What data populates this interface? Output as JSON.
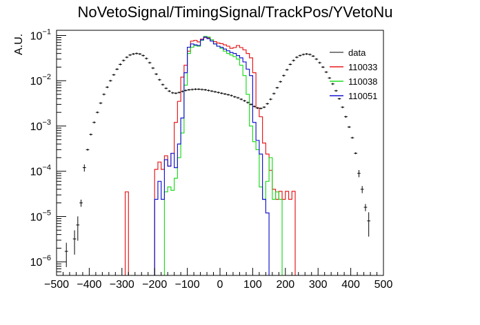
{
  "chart_data": {
    "type": "line",
    "title": "NoVetoSignal/TimingSignal/TrackPos/YVetoNu",
    "xlabel": "",
    "ylabel": "A.U.",
    "xlim": [
      -500,
      500
    ],
    "ylim": [
      5e-07,
      0.13
    ],
    "yscale": "log",
    "grid": false,
    "legend_position": "top-right",
    "x_ticks": [
      -500,
      -400,
      -300,
      -200,
      -100,
      0,
      100,
      200,
      300,
      400,
      500
    ],
    "x_tick_labels": [
      "−500",
      "−400",
      "−300",
      "−200",
      "−100",
      "0",
      "100",
      "200",
      "300",
      "400",
      "500"
    ],
    "y_ticks": [
      1e-06,
      1e-05,
      0.0001,
      0.001,
      0.01,
      0.1
    ],
    "y_tick_labels": [
      {
        "base": "10",
        "exp": "−6"
      },
      {
        "base": "10",
        "exp": "−5"
      },
      {
        "base": "10",
        "exp": "−4"
      },
      {
        "base": "10",
        "exp": "−3"
      },
      {
        "base": "10",
        "exp": "−2"
      },
      {
        "base": "10",
        "exp": "−1"
      }
    ],
    "data_series": {
      "name": "data",
      "color": "#000000",
      "style": "points-with-errors",
      "points": [
        [
          -470,
          1.7e-06
        ],
        [
          -445,
          3.2e-06
        ],
        [
          -435,
          6.5e-06
        ],
        [
          -425,
          2e-05
        ],
        [
          -415,
          0.00012
        ],
        [
          -405,
          0.0003
        ],
        [
          -395,
          0.00065
        ],
        [
          -385,
          0.0012
        ],
        [
          -375,
          0.002
        ],
        [
          -365,
          0.0032
        ],
        [
          -355,
          0.005
        ],
        [
          -345,
          0.0072
        ],
        [
          -335,
          0.01
        ],
        [
          -325,
          0.0135
        ],
        [
          -315,
          0.018
        ],
        [
          -305,
          0.023
        ],
        [
          -295,
          0.028
        ],
        [
          -285,
          0.033
        ],
        [
          -275,
          0.037
        ],
        [
          -265,
          0.039
        ],
        [
          -255,
          0.04
        ],
        [
          -245,
          0.039
        ],
        [
          -235,
          0.036
        ],
        [
          -225,
          0.031
        ],
        [
          -215,
          0.025
        ],
        [
          -205,
          0.019
        ],
        [
          -195,
          0.014
        ],
        [
          -185,
          0.0105
        ],
        [
          -175,
          0.0082
        ],
        [
          -165,
          0.0068
        ],
        [
          -155,
          0.0059
        ],
        [
          -145,
          0.0054
        ],
        [
          -135,
          0.0053
        ],
        [
          -125,
          0.0055
        ],
        [
          -115,
          0.0058
        ],
        [
          -105,
          0.0061
        ],
        [
          -95,
          0.0063
        ],
        [
          -85,
          0.0064
        ],
        [
          -75,
          0.0065
        ],
        [
          -65,
          0.0065
        ],
        [
          -55,
          0.0064
        ],
        [
          -45,
          0.0063
        ],
        [
          -35,
          0.0061
        ],
        [
          -25,
          0.0059
        ],
        [
          -15,
          0.0057
        ],
        [
          -5,
          0.0055
        ],
        [
          5,
          0.0053
        ],
        [
          15,
          0.0051
        ],
        [
          25,
          0.0049
        ],
        [
          35,
          0.0047
        ],
        [
          45,
          0.0044
        ],
        [
          55,
          0.0042
        ],
        [
          65,
          0.0039
        ],
        [
          75,
          0.0036
        ],
        [
          85,
          0.0033
        ],
        [
          95,
          0.003
        ],
        [
          105,
          0.0027
        ],
        [
          115,
          0.0025
        ],
        [
          125,
          0.00245
        ],
        [
          135,
          0.0026
        ],
        [
          145,
          0.0031
        ],
        [
          155,
          0.0039
        ],
        [
          165,
          0.0052
        ],
        [
          175,
          0.007
        ],
        [
          185,
          0.0095
        ],
        [
          195,
          0.013
        ],
        [
          205,
          0.0175
        ],
        [
          215,
          0.023
        ],
        [
          225,
          0.028
        ],
        [
          235,
          0.033
        ],
        [
          245,
          0.036
        ],
        [
          255,
          0.038
        ],
        [
          265,
          0.039
        ],
        [
          275,
          0.038
        ],
        [
          285,
          0.035
        ],
        [
          295,
          0.03
        ],
        [
          305,
          0.025
        ],
        [
          315,
          0.02
        ],
        [
          325,
          0.0155
        ],
        [
          335,
          0.0115
        ],
        [
          345,
          0.0085
        ],
        [
          355,
          0.006
        ],
        [
          365,
          0.004
        ],
        [
          375,
          0.0026
        ],
        [
          385,
          0.0016
        ],
        [
          395,
          0.00095
        ],
        [
          405,
          0.00055
        ],
        [
          415,
          0.00025
        ],
        [
          425,
          9e-05
        ],
        [
          435,
          4e-05
        ],
        [
          445,
          1.6e-05
        ],
        [
          455,
          8e-06
        ]
      ]
    },
    "series": [
      {
        "name": "110033",
        "color": "#e8191b",
        "style": "step",
        "bin_width": 10,
        "bins": [
          [
            -290,
            3.5e-05
          ],
          [
            -200,
            0.00011
          ],
          [
            -190,
            0.00016
          ],
          [
            -180,
            0.00011
          ],
          [
            -170,
            0.00022
          ],
          [
            -160,
            0.00013
          ],
          [
            -150,
            0.00025
          ],
          [
            -140,
            0.0012
          ],
          [
            -130,
            0.0035
          ],
          [
            -120,
            0.012
          ],
          [
            -110,
            0.022
          ],
          [
            -100,
            0.045
          ],
          [
            -90,
            0.075
          ],
          [
            -80,
            0.078
          ],
          [
            -70,
            0.072
          ],
          [
            -60,
            0.083
          ],
          [
            -50,
            0.09
          ],
          [
            -40,
            0.088
          ],
          [
            -30,
            0.08
          ],
          [
            -20,
            0.073
          ],
          [
            -10,
            0.068
          ],
          [
            0,
            0.066
          ],
          [
            10,
            0.062
          ],
          [
            20,
            0.058
          ],
          [
            30,
            0.052
          ],
          [
            40,
            0.054
          ],
          [
            50,
            0.06
          ],
          [
            60,
            0.054
          ],
          [
            70,
            0.048
          ],
          [
            80,
            0.04
          ],
          [
            90,
            0.032
          ],
          [
            100,
            0.015
          ],
          [
            110,
            0.0025
          ],
          [
            120,
            0.0016
          ],
          [
            130,
            0.00042
          ],
          [
            140,
            0.00024
          ],
          [
            150,
            0.000105
          ],
          [
            160,
            4e-05
          ],
          [
            170,
            2.4e-05
          ],
          [
            180,
            3.6e-05
          ],
          [
            190,
            2.4e-05
          ],
          [
            200,
            3.6e-05
          ],
          [
            210,
            2.4e-05
          ],
          [
            220,
            3.6e-05
          ]
        ]
      },
      {
        "name": "110038",
        "color": "#1fdc1f",
        "style": "step",
        "bin_width": 10,
        "bins": [
          [
            -170,
            3.5e-05
          ],
          [
            -160,
            4.5e-05
          ],
          [
            -150,
            3.8e-05
          ],
          [
            -140,
            7e-05
          ],
          [
            -130,
            0.0002
          ],
          [
            -120,
            0.0007
          ],
          [
            -110,
            0.008
          ],
          [
            -100,
            0.04
          ],
          [
            -90,
            0.055
          ],
          [
            -80,
            0.06
          ],
          [
            -70,
            0.058
          ],
          [
            -60,
            0.078
          ],
          [
            -50,
            0.095
          ],
          [
            -40,
            0.092
          ],
          [
            -30,
            0.08
          ],
          [
            -20,
            0.065
          ],
          [
            -10,
            0.058
          ],
          [
            0,
            0.052
          ],
          [
            10,
            0.045
          ],
          [
            20,
            0.04
          ],
          [
            30,
            0.037
          ],
          [
            40,
            0.034
          ],
          [
            50,
            0.03
          ],
          [
            60,
            0.022
          ],
          [
            70,
            0.013
          ],
          [
            80,
            0.005
          ],
          [
            90,
            0.001
          ],
          [
            100,
            0.00045
          ],
          [
            110,
            0.0003
          ],
          [
            120,
            4.5e-05
          ],
          [
            130,
            2.4e-05
          ],
          [
            140,
            6e-05
          ],
          [
            150,
            0.0002
          ],
          [
            160,
            2.4e-05
          ],
          [
            170,
            3.5e-05
          ],
          [
            180,
            2.4e-05
          ]
        ]
      },
      {
        "name": "110051",
        "color": "#1515d0",
        "style": "step",
        "bin_width": 10,
        "bins": [
          [
            -200,
            2.4e-05
          ],
          [
            -190,
            6e-05
          ],
          [
            -180,
            2.4e-05
          ],
          [
            -170,
            0.00018
          ],
          [
            -160,
            0.00013
          ],
          [
            -150,
            0.00025
          ],
          [
            -140,
            0.00012
          ],
          [
            -130,
            0.0004
          ],
          [
            -120,
            0.0015
          ],
          [
            -110,
            0.015
          ],
          [
            -100,
            0.055
          ],
          [
            -90,
            0.065
          ],
          [
            -80,
            0.062
          ],
          [
            -70,
            0.06
          ],
          [
            -60,
            0.08
          ],
          [
            -50,
            0.092
          ],
          [
            -40,
            0.085
          ],
          [
            -30,
            0.075
          ],
          [
            -20,
            0.065
          ],
          [
            -10,
            0.058
          ],
          [
            0,
            0.055
          ],
          [
            10,
            0.05
          ],
          [
            20,
            0.046
          ],
          [
            30,
            0.042
          ],
          [
            40,
            0.04
          ],
          [
            50,
            0.036
          ],
          [
            60,
            0.032
          ],
          [
            70,
            0.026
          ],
          [
            80,
            0.018
          ],
          [
            90,
            0.013
          ],
          [
            100,
            0.0012
          ],
          [
            110,
            0.00048
          ],
          [
            120,
            0.00024
          ],
          [
            130,
            2.4e-05
          ],
          [
            140,
            1.2e-05
          ]
        ]
      }
    ]
  }
}
